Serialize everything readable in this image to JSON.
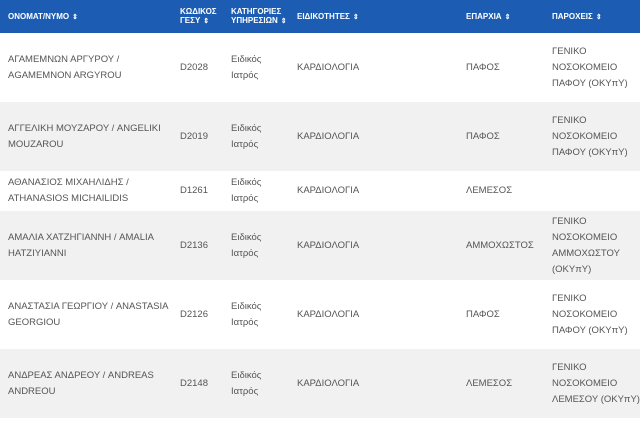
{
  "header": {
    "columns": [
      "ΟΝΟΜΑΤ/ΝΥΜΟ",
      "ΚΩΔΙΚΟΣ ΓΕΣΥ",
      "ΚΑΤΗΓΟΡΙΕΣ ΥΠΗΡΕΣΙΩΝ",
      "ΕΙΔΙΚΟΤΗΤΕΣ",
      "ΕΠΑΡΧΙΑ",
      "ΠΑΡΟΧΕΙΣ"
    ],
    "sort_icon": "sort-up-down-icon",
    "color": "#1c5db3"
  },
  "rows": [
    {
      "name": "ΑΓΑΜΕΜΝΩΝ ΑΡΓΥΡΟΥ / AGAMEMNON ARGYROU",
      "code": "D2028",
      "category": "Ειδικός Ιατρός",
      "specialty": "ΚΑΡΔΙΟΛΟΓΙΑ",
      "district": "ΠΑΦΟΣ",
      "provider": "ΓΕΝΙΚΟ ΝΟΣΟΚΟΜΕΙΟ ΠΑΦΟΥ (ΟΚΥπΥ)"
    },
    {
      "name": "ΑΓΓΕΛΙΚΗ ΜΟΥΖΑΡΟΥ / ANGELIKI MOUZAROU",
      "code": "D2019",
      "category": "Ειδικός Ιατρός",
      "specialty": "ΚΑΡΔΙΟΛΟΓΙΑ",
      "district": "ΠΑΦΟΣ",
      "provider": "ΓΕΝΙΚΟ ΝΟΣΟΚΟΜΕΙΟ ΠΑΦΟΥ (ΟΚΥπΥ)"
    },
    {
      "name": "ΑΘΑΝΑΣΙΟΣ ΜΙΧΑΗΛΙΔΗΣ / ATHANASIOS MICHAILIDIS",
      "code": "D1261",
      "category": "Ειδικός Ιατρός",
      "specialty": "ΚΑΡΔΙΟΛΟΓΙΑ",
      "district": "ΛΕΜΕΣΟΣ",
      "provider": ""
    },
    {
      "name": "ΑΜΑΛΙΑ ΧΑΤΖΗΓΙΑΝΝΗ / AMALIA HATZIYIANNI",
      "code": "D2136",
      "category": "Ειδικός Ιατρός",
      "specialty": "ΚΑΡΔΙΟΛΟΓΙΑ",
      "district": "ΑΜΜΟΧΩΣΤΟΣ",
      "provider": "ΓΕΝΙΚΟ ΝΟΣΟΚΟΜΕΙΟ ΑΜΜΟΧΩΣΤΟΥ (ΟΚΥπΥ)"
    },
    {
      "name": "ΑΝΑΣΤΑΣΙΑ ΓΕΩΡΓΙΟΥ / ANASTASIA GEORGIOU",
      "code": "D2126",
      "category": "Ειδικός Ιατρός",
      "specialty": "ΚΑΡΔΙΟΛΟΓΙΑ",
      "district": "ΠΑΦΟΣ",
      "provider": "ΓΕΝΙΚΟ ΝΟΣΟΚΟΜΕΙΟ ΠΑΦΟΥ (ΟΚΥπΥ)"
    },
    {
      "name": "ΑΝΔΡΕΑΣ ΑΝΔΡΕΟΥ / ANDREAS ANDREOU",
      "code": "D2148",
      "category": "Ειδικός Ιατρός",
      "specialty": "ΚΑΡΔΙΟΛΟΓΙΑ",
      "district": "ΛΕΜΕΣΟΣ",
      "provider": "ΓΕΝΙΚΟ ΝΟΣΟΚΟΜΕΙΟ ΛΕΜΕΣΟΥ (ΟΚΥπΥ)"
    }
  ]
}
